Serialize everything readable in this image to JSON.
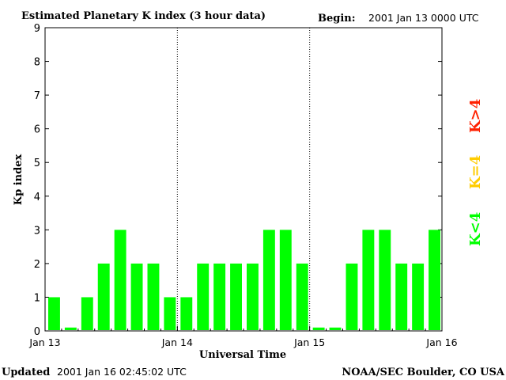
{
  "header": {
    "title": "Estimated Planetary K index (3 hour data)",
    "begin_label": "Begin:",
    "begin_value": "2001 Jan 13 0000 UTC"
  },
  "footer": {
    "updated_label": "Updated",
    "updated_value": "2001 Jan 16 02:45:02 UTC",
    "source": "NOAA/SEC Boulder, CO USA"
  },
  "legend": {
    "gt4": "K>4",
    "eq4": "K=4",
    "lt4": "K<4"
  },
  "colors": {
    "lt4": "#00ff00",
    "eq4": "#ffcc00",
    "gt4": "#ff2000"
  },
  "chart_data": {
    "type": "bar",
    "xlabel": "Universal Time",
    "ylabel": "Kp index",
    "ylim": [
      0,
      9
    ],
    "yticks": [
      0,
      1,
      2,
      3,
      4,
      5,
      6,
      7,
      8,
      9
    ],
    "day_labels": [
      "Jan 13",
      "Jan 14",
      "Jan 15",
      "Jan 16"
    ],
    "values": [
      1,
      0.1,
      1,
      2,
      3,
      2,
      2,
      1,
      1,
      2,
      2,
      2,
      2,
      3,
      3,
      2,
      0.1,
      0.1,
      2,
      3,
      3,
      2,
      2,
      3
    ]
  }
}
